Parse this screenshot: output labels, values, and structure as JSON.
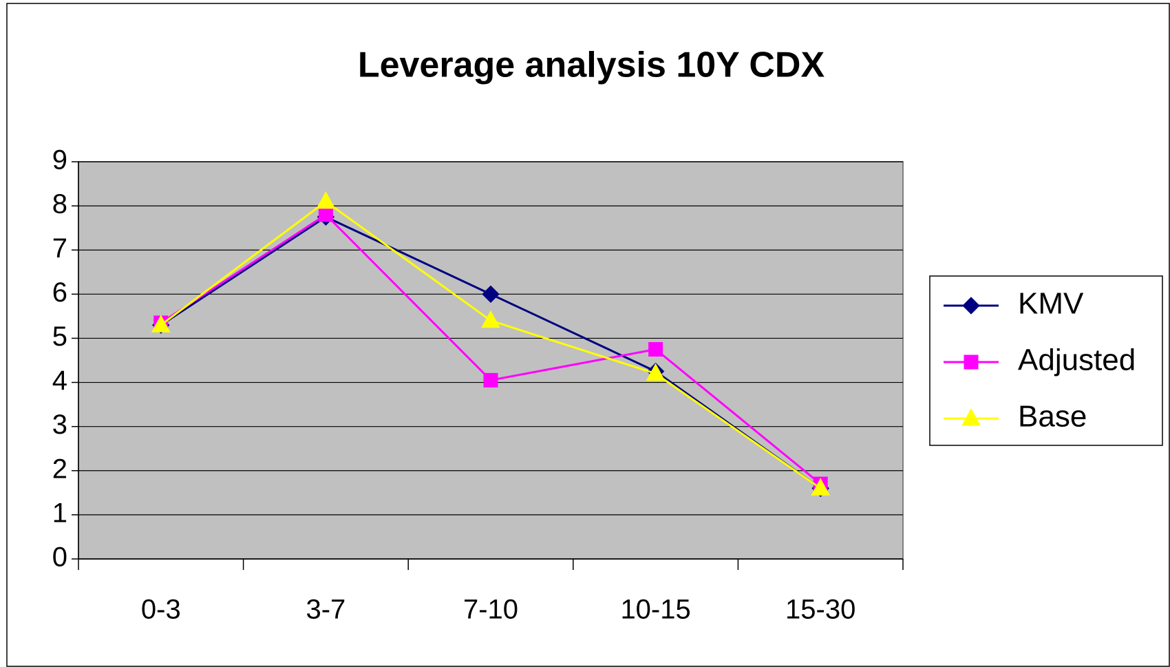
{
  "chart_data": {
    "type": "line",
    "title": "Leverage analysis 10Y CDX",
    "categories": [
      "0-3",
      "3-7",
      "7-10",
      "10-15",
      "15-30"
    ],
    "series": [
      {
        "name": "KMV",
        "color": "#000080",
        "marker": "diamond",
        "values": [
          5.3,
          7.75,
          6.0,
          4.25,
          1.6
        ]
      },
      {
        "name": "Adjusted",
        "color": "#ff00ff",
        "marker": "square",
        "values": [
          5.35,
          7.8,
          4.05,
          4.75,
          1.7
        ]
      },
      {
        "name": "Base",
        "color": "#ffff00",
        "marker": "triangle",
        "values": [
          5.3,
          8.1,
          5.4,
          4.2,
          1.6
        ]
      }
    ],
    "ylim": [
      0,
      9
    ],
    "yticks": [
      0,
      1,
      2,
      3,
      4,
      5,
      6,
      7,
      8,
      9
    ],
    "grid": true,
    "legend": "right"
  }
}
